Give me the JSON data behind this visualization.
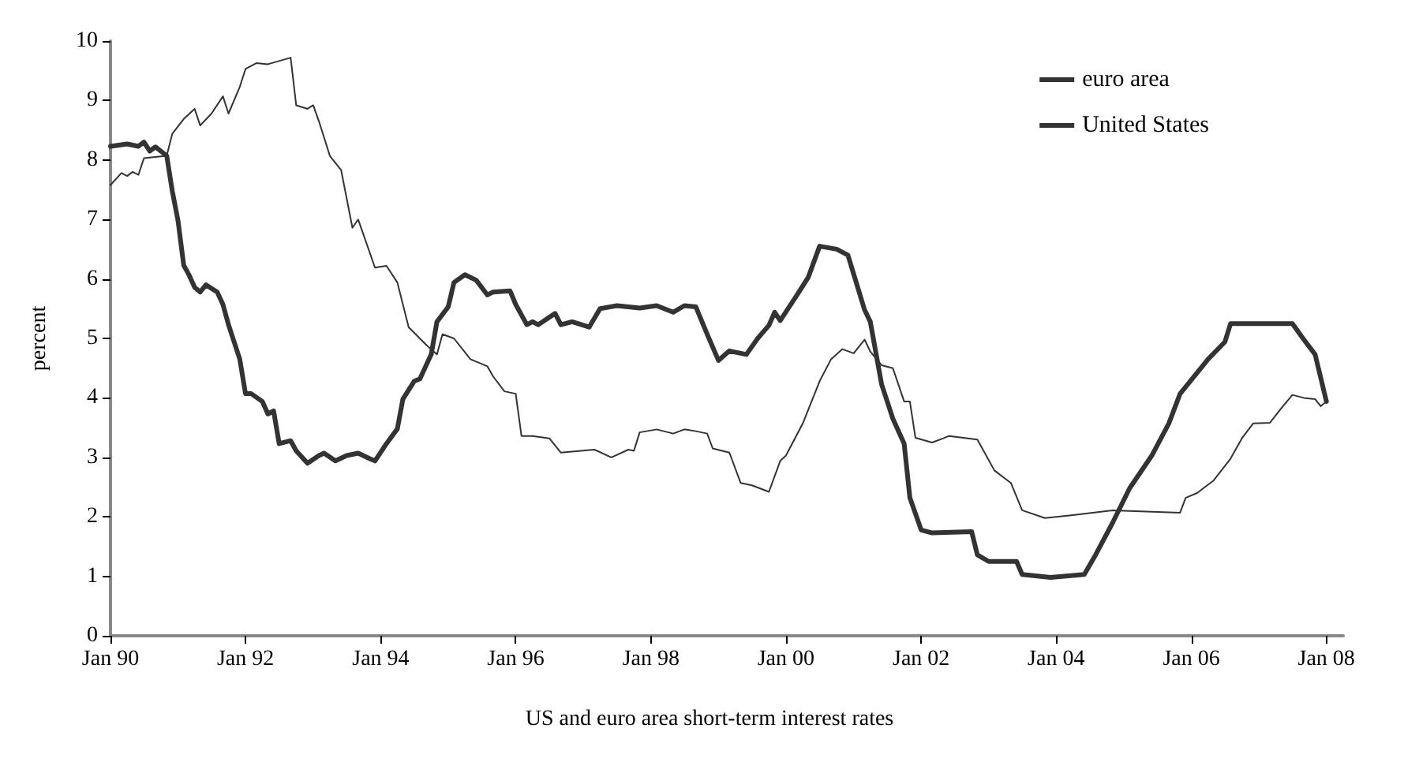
{
  "chart_data": {
    "type": "line",
    "ylabel": "percent",
    "annotations": [
      "US and euro area short-term interest rates"
    ],
    "legend": "top right",
    "grid": false,
    "marker": "none",
    "line_style": "solid",
    "xlim": [
      "1990-01",
      "2008-04"
    ],
    "ylim": [
      0,
      10
    ],
    "yticks": [
      0,
      1,
      2,
      3,
      4,
      5,
      6,
      7,
      8,
      9,
      10
    ],
    "xticks": [
      {
        "value": "1990-01",
        "label": "Jan 90"
      },
      {
        "value": "1992-01",
        "label": "Jan 92"
      },
      {
        "value": "1994-01",
        "label": "Jan 94"
      },
      {
        "value": "1996-01",
        "label": "Jan 96"
      },
      {
        "value": "1998-01",
        "label": "Jan 98"
      },
      {
        "value": "2000-01",
        "label": "Jan 00"
      },
      {
        "value": "2002-01",
        "label": "Jan 02"
      },
      {
        "value": "2004-01",
        "label": "Jan 04"
      },
      {
        "value": "2006-01",
        "label": "Jan 06"
      },
      {
        "value": "2008-01",
        "label": "Jan 08"
      }
    ],
    "series": [
      {
        "name": "euro area",
        "color": "#333333",
        "x": [
          "1990-01",
          "1990-03",
          "1990-04",
          "1990-05",
          "1990-06",
          "1990-07",
          "1990-11",
          "1990-12",
          "1991-02",
          "1991-04",
          "1991-05",
          "1991-07",
          "1991-09",
          "1991-10",
          "1991-12",
          "1992-01",
          "1992-03",
          "1992-05",
          "1992-09",
          "1992-10",
          "1992-12",
          "1993-01",
          "1993-02",
          "1993-04",
          "1993-06",
          "1993-08",
          "1993-09",
          "1993-12",
          "1994-02",
          "1994-04",
          "1994-06",
          "1994-09",
          "1994-11",
          "1994-12",
          "1995-02",
          "1995-05",
          "1995-08",
          "1995-09",
          "1995-11",
          "1996-01",
          "1996-02",
          "1996-04",
          "1996-07",
          "1996-09",
          "1997-03",
          "1997-06",
          "1997-09",
          "1997-10",
          "1997-11",
          "1998-02",
          "1998-05",
          "1998-07",
          "1998-09",
          "1998-11",
          "1998-12",
          "1999-03",
          "1999-05",
          "1999-07",
          "1999-10",
          "1999-12",
          "2000-01",
          "2000-04",
          "2000-07",
          "2000-09",
          "2000-11",
          "2001-01",
          "2001-03",
          "2001-04",
          "2001-06",
          "2001-08",
          "2001-10",
          "2001-11",
          "2001-12",
          "2002-03",
          "2002-05",
          "2002-06",
          "2002-11",
          "2003-02",
          "2003-05",
          "2003-07",
          "2003-11",
          "2004-04",
          "2004-11",
          "2005-11",
          "2005-12",
          "2006-02",
          "2006-05",
          "2006-08",
          "2006-10",
          "2006-12",
          "2007-03",
          "2007-05",
          "2007-07",
          "2007-09",
          "2007-11",
          "2007-12",
          "2008-01"
        ],
        "values": [
          7.58,
          7.78,
          7.73,
          7.8,
          7.75,
          8.03,
          8.07,
          8.44,
          8.69,
          8.86,
          8.58,
          8.78,
          9.07,
          8.78,
          9.23,
          9.53,
          9.63,
          9.61,
          9.72,
          8.92,
          8.86,
          8.92,
          8.65,
          8.07,
          7.83,
          6.86,
          7.0,
          6.19,
          6.22,
          5.94,
          5.19,
          4.9,
          4.73,
          5.07,
          5.0,
          4.65,
          4.53,
          4.36,
          4.11,
          4.07,
          3.36,
          3.36,
          3.32,
          3.08,
          3.13,
          3.0,
          3.13,
          3.11,
          3.42,
          3.47,
          3.4,
          3.47,
          3.44,
          3.4,
          3.15,
          3.08,
          2.57,
          2.53,
          2.42,
          2.94,
          3.03,
          3.57,
          4.28,
          4.65,
          4.82,
          4.75,
          4.98,
          4.78,
          4.55,
          4.5,
          3.94,
          3.94,
          3.33,
          3.25,
          3.32,
          3.36,
          3.3,
          2.78,
          2.57,
          2.11,
          1.98,
          2.03,
          2.11,
          2.07,
          2.32,
          2.4,
          2.61,
          2.98,
          3.32,
          3.57,
          3.58,
          3.82,
          4.05,
          4.0,
          3.98,
          3.86,
          3.94
        ]
      },
      {
        "name": "United States",
        "color": "#333333",
        "x": [
          "1990-01",
          "1990-04",
          "1990-06",
          "1990-07",
          "1990-08",
          "1990-09",
          "1990-11",
          "1990-12",
          "1991-01",
          "1991-02",
          "1991-03",
          "1991-04",
          "1991-05",
          "1991-06",
          "1991-08",
          "1991-09",
          "1991-10",
          "1991-12",
          "1992-01",
          "1992-02",
          "1992-04",
          "1992-05",
          "1992-06",
          "1992-07",
          "1992-09",
          "1992-10",
          "1992-12",
          "1993-02",
          "1993-03",
          "1993-05",
          "1993-07",
          "1993-09",
          "1993-11",
          "1993-12",
          "1994-02",
          "1994-04",
          "1994-05",
          "1994-07",
          "1994-08",
          "1994-10",
          "1994-11",
          "1995-01",
          "1995-02",
          "1995-04",
          "1995-06",
          "1995-08",
          "1995-09",
          "1995-12",
          "1996-01",
          "1996-03",
          "1996-04",
          "1996-05",
          "1996-08",
          "1996-09",
          "1996-11",
          "1997-02",
          "1997-04",
          "1997-07",
          "1997-11",
          "1998-02",
          "1998-05",
          "1998-07",
          "1998-09",
          "1998-11",
          "1999-01",
          "1999-03",
          "1999-06",
          "1999-08",
          "1999-10",
          "1999-11",
          "1999-12",
          "2000-03",
          "2000-05",
          "2000-07",
          "2000-10",
          "2000-12",
          "2001-03",
          "2001-04",
          "2001-06",
          "2001-08",
          "2001-10",
          "2001-11",
          "2002-01",
          "2002-03",
          "2002-10",
          "2002-11",
          "2003-01",
          "2003-06",
          "2003-07",
          "2003-12",
          "2004-06",
          "2004-08",
          "2004-11",
          "2005-02",
          "2005-06",
          "2005-09",
          "2005-11",
          "2006-04",
          "2006-07",
          "2006-08",
          "2006-12",
          "2007-07",
          "2007-09",
          "2007-11",
          "2008-01"
        ],
        "values": [
          8.23,
          8.27,
          8.23,
          8.3,
          8.15,
          8.22,
          8.07,
          7.48,
          6.98,
          6.23,
          6.07,
          5.86,
          5.78,
          5.9,
          5.78,
          5.57,
          5.23,
          4.65,
          4.07,
          4.07,
          3.94,
          3.73,
          3.78,
          3.23,
          3.28,
          3.11,
          2.9,
          3.03,
          3.07,
          2.94,
          3.03,
          3.07,
          2.98,
          2.94,
          3.23,
          3.48,
          3.98,
          4.28,
          4.32,
          4.73,
          5.28,
          5.53,
          5.94,
          6.07,
          5.98,
          5.73,
          5.78,
          5.8,
          5.57,
          5.23,
          5.28,
          5.23,
          5.42,
          5.23,
          5.28,
          5.19,
          5.5,
          5.55,
          5.51,
          5.55,
          5.44,
          5.55,
          5.53,
          5.07,
          4.63,
          4.79,
          4.73,
          5.0,
          5.22,
          5.44,
          5.3,
          5.73,
          6.03,
          6.55,
          6.5,
          6.4,
          5.48,
          5.28,
          4.23,
          3.65,
          3.23,
          2.32,
          1.78,
          1.73,
          1.75,
          1.36,
          1.25,
          1.25,
          1.03,
          0.98,
          1.03,
          1.36,
          1.9,
          2.48,
          3.03,
          3.57,
          4.07,
          4.65,
          4.94,
          5.25,
          5.25,
          5.25,
          4.98,
          4.73,
          3.94
        ]
      }
    ]
  }
}
